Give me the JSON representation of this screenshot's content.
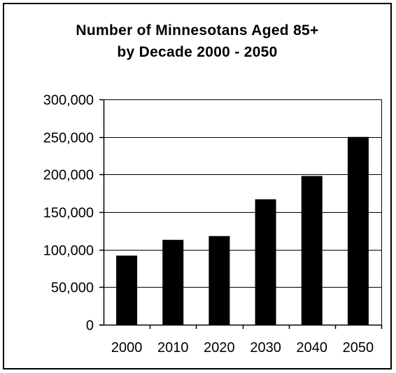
{
  "chart_data": {
    "type": "bar",
    "title": [
      "Number of Minnesotans Aged 85+",
      "by Decade 2000 - 2050"
    ],
    "xlabel": "",
    "ylabel": "",
    "categories": [
      "2000",
      "2010",
      "2020",
      "2030",
      "2040",
      "2050"
    ],
    "values": [
      92000,
      113000,
      118000,
      167000,
      198000,
      250000
    ],
    "ylim": [
      0,
      300000
    ],
    "yticks": [
      0,
      50000,
      100000,
      150000,
      200000,
      250000,
      300000
    ],
    "ytick_labels": [
      "0",
      "50,000",
      "100,000",
      "150,000",
      "200,000",
      "250,000",
      "300,000"
    ],
    "grid": "horizontal",
    "legend": "none",
    "bar_color": "#000000"
  }
}
